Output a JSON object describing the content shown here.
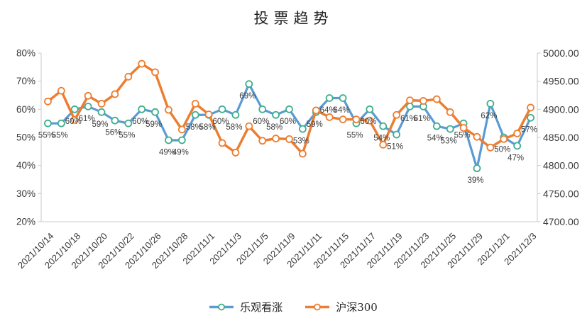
{
  "title": "投票趋势",
  "legend": {
    "items": [
      {
        "label": "乐观看涨",
        "line_color": "#5B9BD5",
        "marker_color": "#3EAE8E"
      },
      {
        "label": "沪深300",
        "line_color": "#ED7D31",
        "marker_color": "#ED7D31"
      }
    ]
  },
  "colors": {
    "axis_line": "#C8C8C8",
    "tick_text": "#383838",
    "data_label_text": "#3B3B3B",
    "background": "#FFFFFF"
  },
  "chart_data": {
    "type": "line",
    "title": "投票趋势",
    "n_points": 37,
    "x_tick_interval": 2,
    "x_tick_labels": [
      "2021/10/14",
      "2021/10/18",
      "2021/10/20",
      "2021/10/22",
      "2021/10/26",
      "2021/10/28",
      "2021/11/1",
      "2021/11/3",
      "2021/11/5",
      "2021/11/9",
      "2021/11/11",
      "2021/11/15",
      "2021/11/17",
      "2021/11/19",
      "2021/11/23",
      "2021/11/25",
      "2021/11/29",
      "2021/12/1",
      "2021/12/3"
    ],
    "left_axis": {
      "ticks": [
        "80%",
        "70%",
        "60%",
        "50%",
        "40%",
        "30%",
        "20%"
      ],
      "min": 20,
      "max": 80,
      "unit": "%"
    },
    "right_axis": {
      "ticks": [
        "5000.00",
        "4950.00",
        "4900.00",
        "4850.00",
        "4800.00",
        "4750.00",
        "4700.00"
      ],
      "min": 4700,
      "max": 5000
    },
    "grid": false,
    "legend_position": "bottom",
    "series": [
      {
        "name": "乐观看涨",
        "axis": "left",
        "unit": "%",
        "color": "#5B9BD5",
        "marker_color": "#3EAE8E",
        "data_labels": true,
        "values": [
          55,
          55,
          60,
          61,
          59,
          56,
          55,
          60,
          59,
          49,
          49,
          58,
          58,
          60,
          58,
          69,
          60,
          58,
          60,
          53,
          59,
          64,
          64,
          55,
          60,
          54,
          51,
          61,
          61,
          54,
          53,
          55,
          39,
          62,
          50,
          47,
          57
        ]
      },
      {
        "name": "沪深300",
        "axis": "right",
        "color": "#ED7D31",
        "marker_color": "#ED7D31",
        "data_labels": false,
        "values": [
          4914,
          4933,
          4881,
          4924,
          4910,
          4927,
          4958,
          4981,
          4966,
          4899,
          4864,
          4910,
          4891,
          4840,
          4823,
          4870,
          4844,
          4848,
          4847,
          4821,
          4898,
          4886,
          4882,
          4882,
          4880,
          4837,
          4890,
          4916,
          4915,
          4918,
          4895,
          4867,
          4851,
          4832,
          4847,
          4857,
          4903
        ]
      }
    ]
  }
}
